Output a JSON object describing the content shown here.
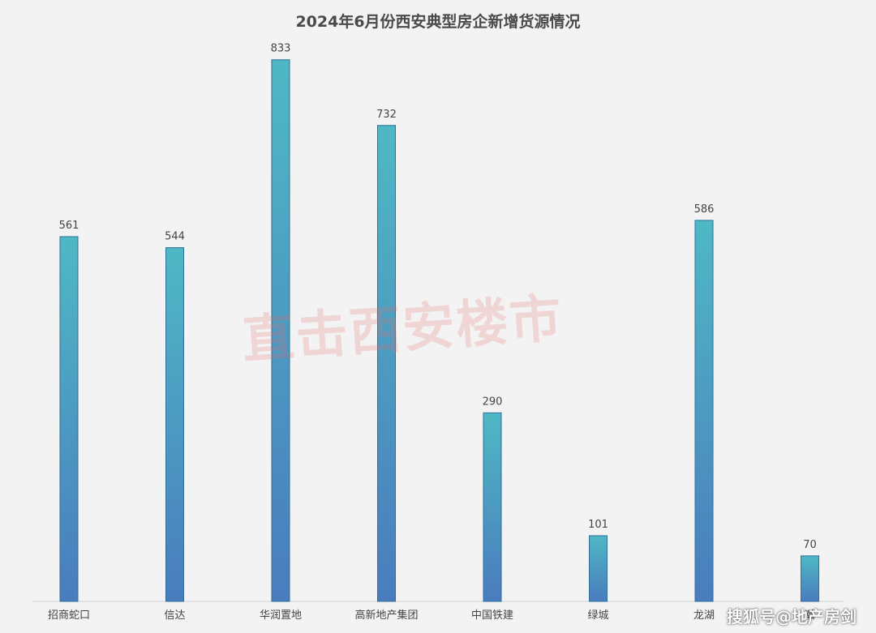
{
  "chart_data": {
    "type": "bar",
    "title": "2024年6月份西安典型房企新增货源情况",
    "categories": [
      "招商蛇口",
      "信达",
      "华润置地",
      "高新地产集团",
      "中国铁建",
      "绿城",
      "龙湖",
      "瀚"
    ],
    "values": [
      561,
      544,
      833,
      732,
      290,
      101,
      586,
      70
    ],
    "xlabel": "",
    "ylabel": "",
    "ylim": [
      0,
      900
    ],
    "grid": false,
    "legend": "none",
    "colors": {
      "bar_top": "#4fb8c4",
      "bar_bottom": "#4a7cbe",
      "bar_edge": "#2f6f9a",
      "label": "#444444",
      "axis": "#d0d0d0"
    }
  },
  "watermark": "直击西安楼市",
  "source_mark": "搜狐号@地产房剑"
}
